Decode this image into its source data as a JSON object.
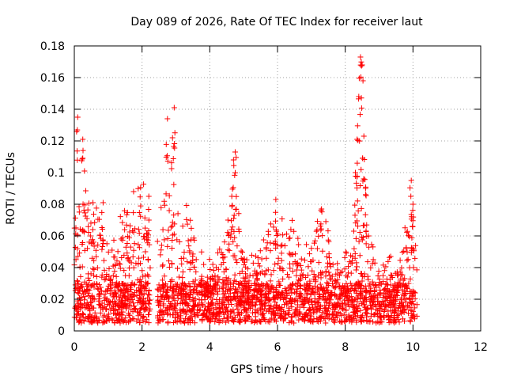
{
  "chart_data": {
    "type": "scatter",
    "title": "Day 089 of 2026, Rate Of TEC Index for receiver laut",
    "xlabel": "GPS time / hours",
    "ylabel": "ROTI / TECUs",
    "xlim": [
      0,
      12
    ],
    "ylim": [
      0,
      0.18
    ],
    "x_ticks": [
      "0",
      "2",
      "4",
      "6",
      "8",
      "10",
      "12"
    ],
    "y_ticks": [
      "0",
      "0.02",
      "0.04",
      "0.06",
      "0.08",
      "0.1",
      "0.12",
      "0.14",
      "0.16",
      "0.18"
    ],
    "grid": true,
    "marker": "+",
    "series_color": "#ff0000",
    "data_gaps_hours": [
      [
        2.25,
        2.45
      ],
      [
        10.15,
        12
      ]
    ],
    "notable_peaks": [
      {
        "x": 0.1,
        "y": 0.135
      },
      {
        "x": 0.25,
        "y": 0.121
      },
      {
        "x": 0.3,
        "y": 0.101
      },
      {
        "x": 2.95,
        "y": 0.141
      },
      {
        "x": 2.75,
        "y": 0.134
      },
      {
        "x": 2.9,
        "y": 0.122
      },
      {
        "x": 4.75,
        "y": 0.113
      },
      {
        "x": 4.7,
        "y": 0.108
      },
      {
        "x": 4.65,
        "y": 0.085
      },
      {
        "x": 5.95,
        "y": 0.083
      },
      {
        "x": 7.3,
        "y": 0.077
      },
      {
        "x": 8.45,
        "y": 0.173
      },
      {
        "x": 8.5,
        "y": 0.168
      },
      {
        "x": 8.4,
        "y": 0.148
      },
      {
        "x": 8.55,
        "y": 0.123
      },
      {
        "x": 8.35,
        "y": 0.121
      },
      {
        "x": 8.3,
        "y": 0.1
      },
      {
        "x": 8.6,
        "y": 0.09
      },
      {
        "x": 9.95,
        "y": 0.095
      },
      {
        "x": 10.0,
        "y": 0.08
      },
      {
        "x": 1.75,
        "y": 0.088
      },
      {
        "x": 2.2,
        "y": 0.085
      },
      {
        "x": 0.55,
        "y": 0.081
      },
      {
        "x": 0.85,
        "y": 0.081
      }
    ],
    "baseline_range": [
      0.005,
      0.03
    ]
  }
}
